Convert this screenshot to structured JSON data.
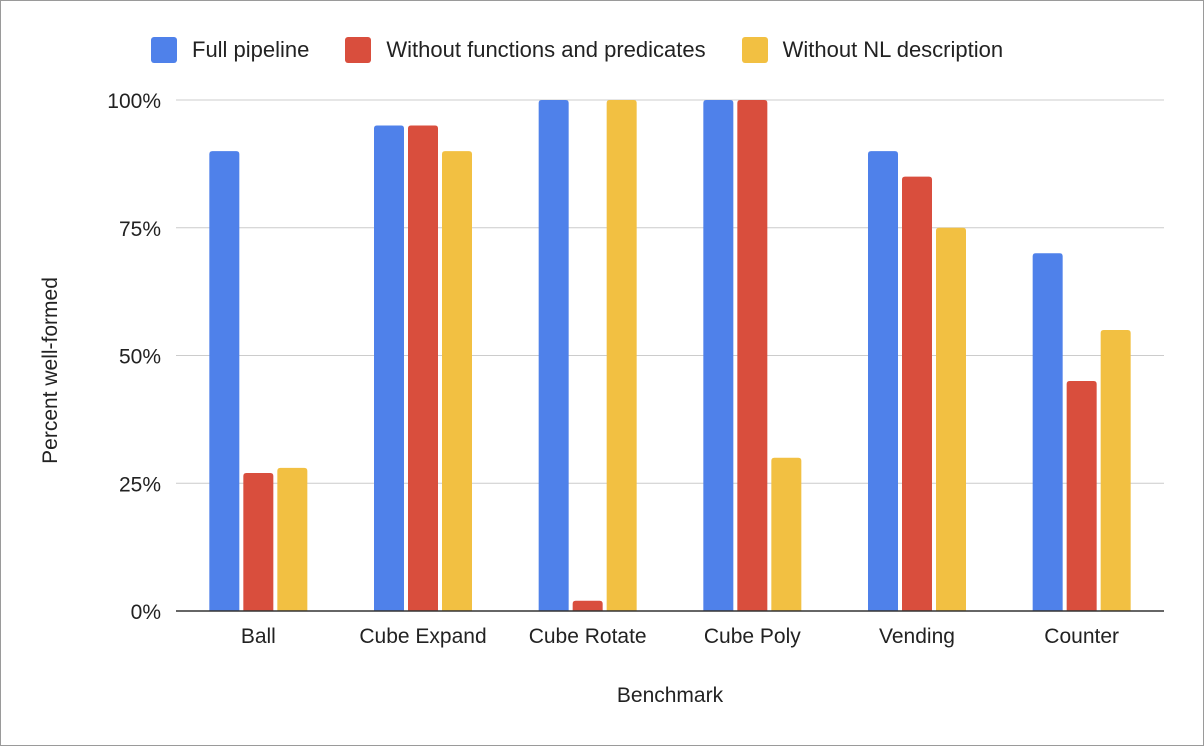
{
  "chart_data": {
    "type": "bar",
    "title": "",
    "xlabel": "Benchmark",
    "ylabel": "Percent well-formed",
    "categories": [
      "Ball",
      "Cube Expand",
      "Cube Rotate",
      "Cube Poly",
      "Vending",
      "Counter"
    ],
    "series": [
      {
        "name": "Full pipeline",
        "color": "#4f81ea",
        "values": [
          90,
          95,
          100,
          100,
          90,
          70
        ]
      },
      {
        "name": "Without functions and predicates",
        "color": "#d94e3d",
        "values": [
          27,
          95,
          2,
          100,
          85,
          45
        ]
      },
      {
        "name": "Without NL description",
        "color": "#f2c042",
        "values": [
          28,
          90,
          100,
          30,
          75,
          55
        ]
      }
    ],
    "ylim": [
      0,
      100
    ],
    "yticks": [
      0,
      25,
      50,
      75,
      100
    ],
    "ytick_labels": [
      "0%",
      "25%",
      "50%",
      "75%",
      "100%"
    ],
    "grid": true,
    "legend_position": "top"
  }
}
